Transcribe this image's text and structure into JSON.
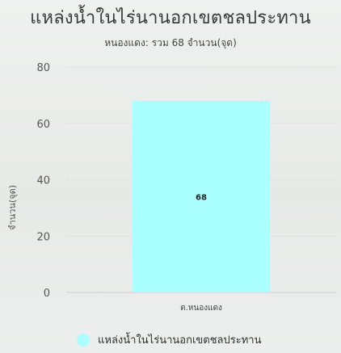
{
  "chart_data": {
    "type": "bar",
    "title": "แหล่งน้ำในไร่นานอกเขตชลประทาน",
    "subtitle": "หนองแดง: รวม 68 จำนวน(จุด)",
    "xlabel": "",
    "ylabel": "จำนวน(จุด)",
    "categories": [
      "ต.หนองแดง"
    ],
    "series": [
      {
        "name": "แหล่งน้ำในไร่นานอกเขตชลประทาน",
        "values": [
          68
        ],
        "color": "#aaffff"
      }
    ],
    "data_labels": [
      "68"
    ],
    "ylim": [
      0,
      80
    ],
    "yticks": [
      0,
      20,
      40,
      60,
      80
    ],
    "ytick_labels": [
      "0",
      "20",
      "40",
      "60",
      "80"
    ],
    "grid": true,
    "legend_position": "bottom"
  }
}
